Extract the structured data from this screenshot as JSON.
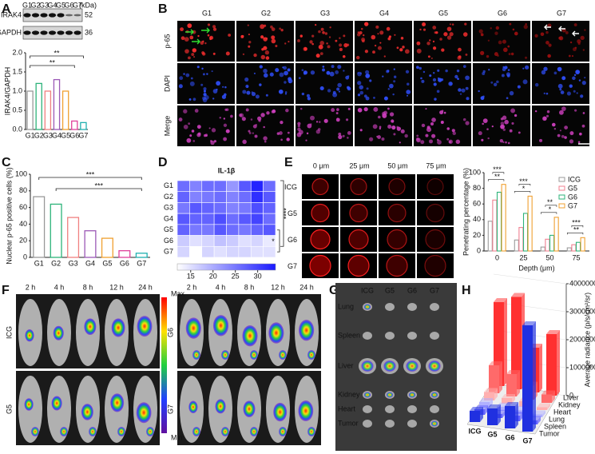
{
  "panel_labels": [
    "A",
    "B",
    "C",
    "D",
    "E",
    "F",
    "G",
    "H"
  ],
  "blot": {
    "lanes": [
      "G1",
      "G2",
      "G3",
      "G4",
      "G5",
      "G6",
      "G7"
    ],
    "unit": "(kDa)",
    "bands": [
      {
        "name": "IRAK4",
        "kda": "52"
      },
      {
        "name": "GAPDH",
        "kda": "36"
      }
    ]
  },
  "staining": {
    "groups": [
      "G1",
      "G2",
      "G3",
      "G4",
      "G5",
      "G6",
      "G7"
    ],
    "channels": [
      "p-65",
      "DAPI",
      "Merge"
    ]
  },
  "spheroids": {
    "depths": [
      "0 μm",
      "25 μm",
      "50 μm",
      "75 μm"
    ],
    "groups": [
      "ICG",
      "G5",
      "G6",
      "G7"
    ]
  },
  "imaging": {
    "times": [
      "2 h",
      "4 h",
      "8 h",
      "12 h",
      "24 h"
    ],
    "groups": [
      [
        "ICG",
        "G5"
      ],
      [
        "G6",
        "G7"
      ]
    ],
    "scale": [
      "Max",
      "Min"
    ]
  },
  "ex_vivo": {
    "groups": [
      "ICG",
      "G5",
      "G6",
      "G7"
    ],
    "organs": [
      "Lung",
      "Spleen",
      "Liver",
      "Kidney",
      "Heart",
      "Tumor"
    ]
  },
  "chart_data": [
    {
      "type": "bar",
      "y_label": "IRAK4/GAPDH",
      "categories": [
        "G1",
        "G2",
        "G3",
        "G4",
        "G5",
        "G6",
        "G7"
      ],
      "values": [
        1.0,
        1.2,
        1.0,
        1.3,
        1.0,
        0.22,
        0.18
      ],
      "colors": [
        "#999999",
        "#2db37a",
        "#f08080",
        "#9b59b6",
        "#f0a030",
        "#e0409a",
        "#20b0b0"
      ],
      "ylim": [
        0,
        2
      ],
      "yticks": [
        {
          "value": 0,
          "label": "0.0"
        },
        0.5,
        {
          "value": 1,
          "label": "1.0"
        },
        1.5,
        {
          "value": 2,
          "label": "2.0"
        }
      ],
      "annotations": [
        "**",
        "**"
      ]
    },
    {
      "type": "bar",
      "y_label": "Nuclear p-65 positive cells (%)",
      "categories": [
        "G1",
        "G2",
        "G3",
        "G4",
        "G5",
        "G6",
        "G7"
      ],
      "values": [
        73,
        64,
        48,
        32,
        23,
        8,
        5
      ],
      "colors": [
        "#999999",
        "#2db37a",
        "#f08080",
        "#9b59b6",
        "#f0a030",
        "#e0409a",
        "#20b0b0"
      ],
      "ylim": [
        0,
        100
      ],
      "yticks": [
        0,
        20,
        40,
        60,
        80,
        100
      ],
      "annotations": [
        "***",
        "***"
      ]
    },
    {
      "type": "heatmap",
      "title": "IL-1β",
      "rows": [
        "G1",
        "G2",
        "G3",
        "G4",
        "G5",
        "G6",
        "G7"
      ],
      "values": [
        [
          26,
          24,
          26,
          26,
          22,
          28,
          33,
          26
        ],
        [
          27,
          24,
          25,
          26,
          24,
          26,
          32,
          28
        ],
        [
          25,
          28,
          27,
          26,
          24,
          25,
          29,
          27
        ],
        [
          28,
          27,
          27,
          29,
          26,
          28,
          30,
          26
        ],
        [
          27,
          25,
          25,
          28,
          26,
          25,
          27,
          28
        ],
        [
          17,
          15,
          16,
          18,
          17,
          15,
          16,
          14
        ],
        [
          16,
          12,
          16,
          15,
          16,
          16,
          15,
          15
        ]
      ],
      "zlim": [
        12,
        34
      ],
      "zticks": [
        15,
        20,
        25,
        30
      ],
      "colors": [
        "#ffffff",
        "#1a1aff"
      ],
      "annotations": [
        "****",
        "*"
      ]
    },
    {
      "type": "grouped_bar",
      "y_label": "Penetrating percentage (%)",
      "x_label": "Depth (μm)",
      "categories": [
        "0",
        "25",
        "50",
        "75"
      ],
      "series": [
        {
          "name": "ICG",
          "color": "#9a9a9a",
          "values": [
            38,
            14,
            5,
            4
          ]
        },
        {
          "name": "G5",
          "color": "#f08090",
          "values": [
            65,
            30,
            15,
            8
          ]
        },
        {
          "name": "G6",
          "color": "#2db37a",
          "values": [
            75,
            48,
            20,
            11
          ]
        },
        {
          "name": "G7",
          "color": "#f0a030",
          "values": [
            85,
            70,
            43,
            17
          ]
        }
      ],
      "ylim": [
        0,
        100
      ],
      "yticks": [
        0,
        20,
        40,
        60,
        80,
        100
      ],
      "annotations": [
        "**",
        "***",
        "*",
        "***",
        "*",
        "**",
        "**",
        "***"
      ]
    },
    {
      "type": "bar3d",
      "z_label": "Average radiance (p/s/cm²/sr)",
      "categories": [
        "ICG",
        "G5",
        "G6",
        "G7"
      ],
      "series": [
        {
          "name": "Liver",
          "color": "#ff3030",
          "values": [
            3000000,
            3300000,
            1600000,
            2200000
          ]
        },
        {
          "name": "Kidney",
          "color": "#ff6a6a",
          "values": [
            1000000,
            800000,
            500000,
            300000
          ]
        },
        {
          "name": "Heart",
          "color": "#ffb0b0",
          "values": [
            300000,
            200000,
            200000,
            100000
          ]
        },
        {
          "name": "Lung",
          "color": "#b0b0ff",
          "values": [
            200000,
            150000,
            150000,
            100000
          ]
        },
        {
          "name": "Spleen",
          "color": "#6060ff",
          "values": [
            200000,
            150000,
            200000,
            150000
          ]
        },
        {
          "name": "Tumor",
          "color": "#2030e0",
          "values": [
            400000,
            600000,
            800000,
            3800000
          ]
        }
      ],
      "zlim": [
        0,
        4000000
      ],
      "zticks": [
        0,
        1000000,
        2000000,
        3000000,
        4000000
      ]
    }
  ]
}
